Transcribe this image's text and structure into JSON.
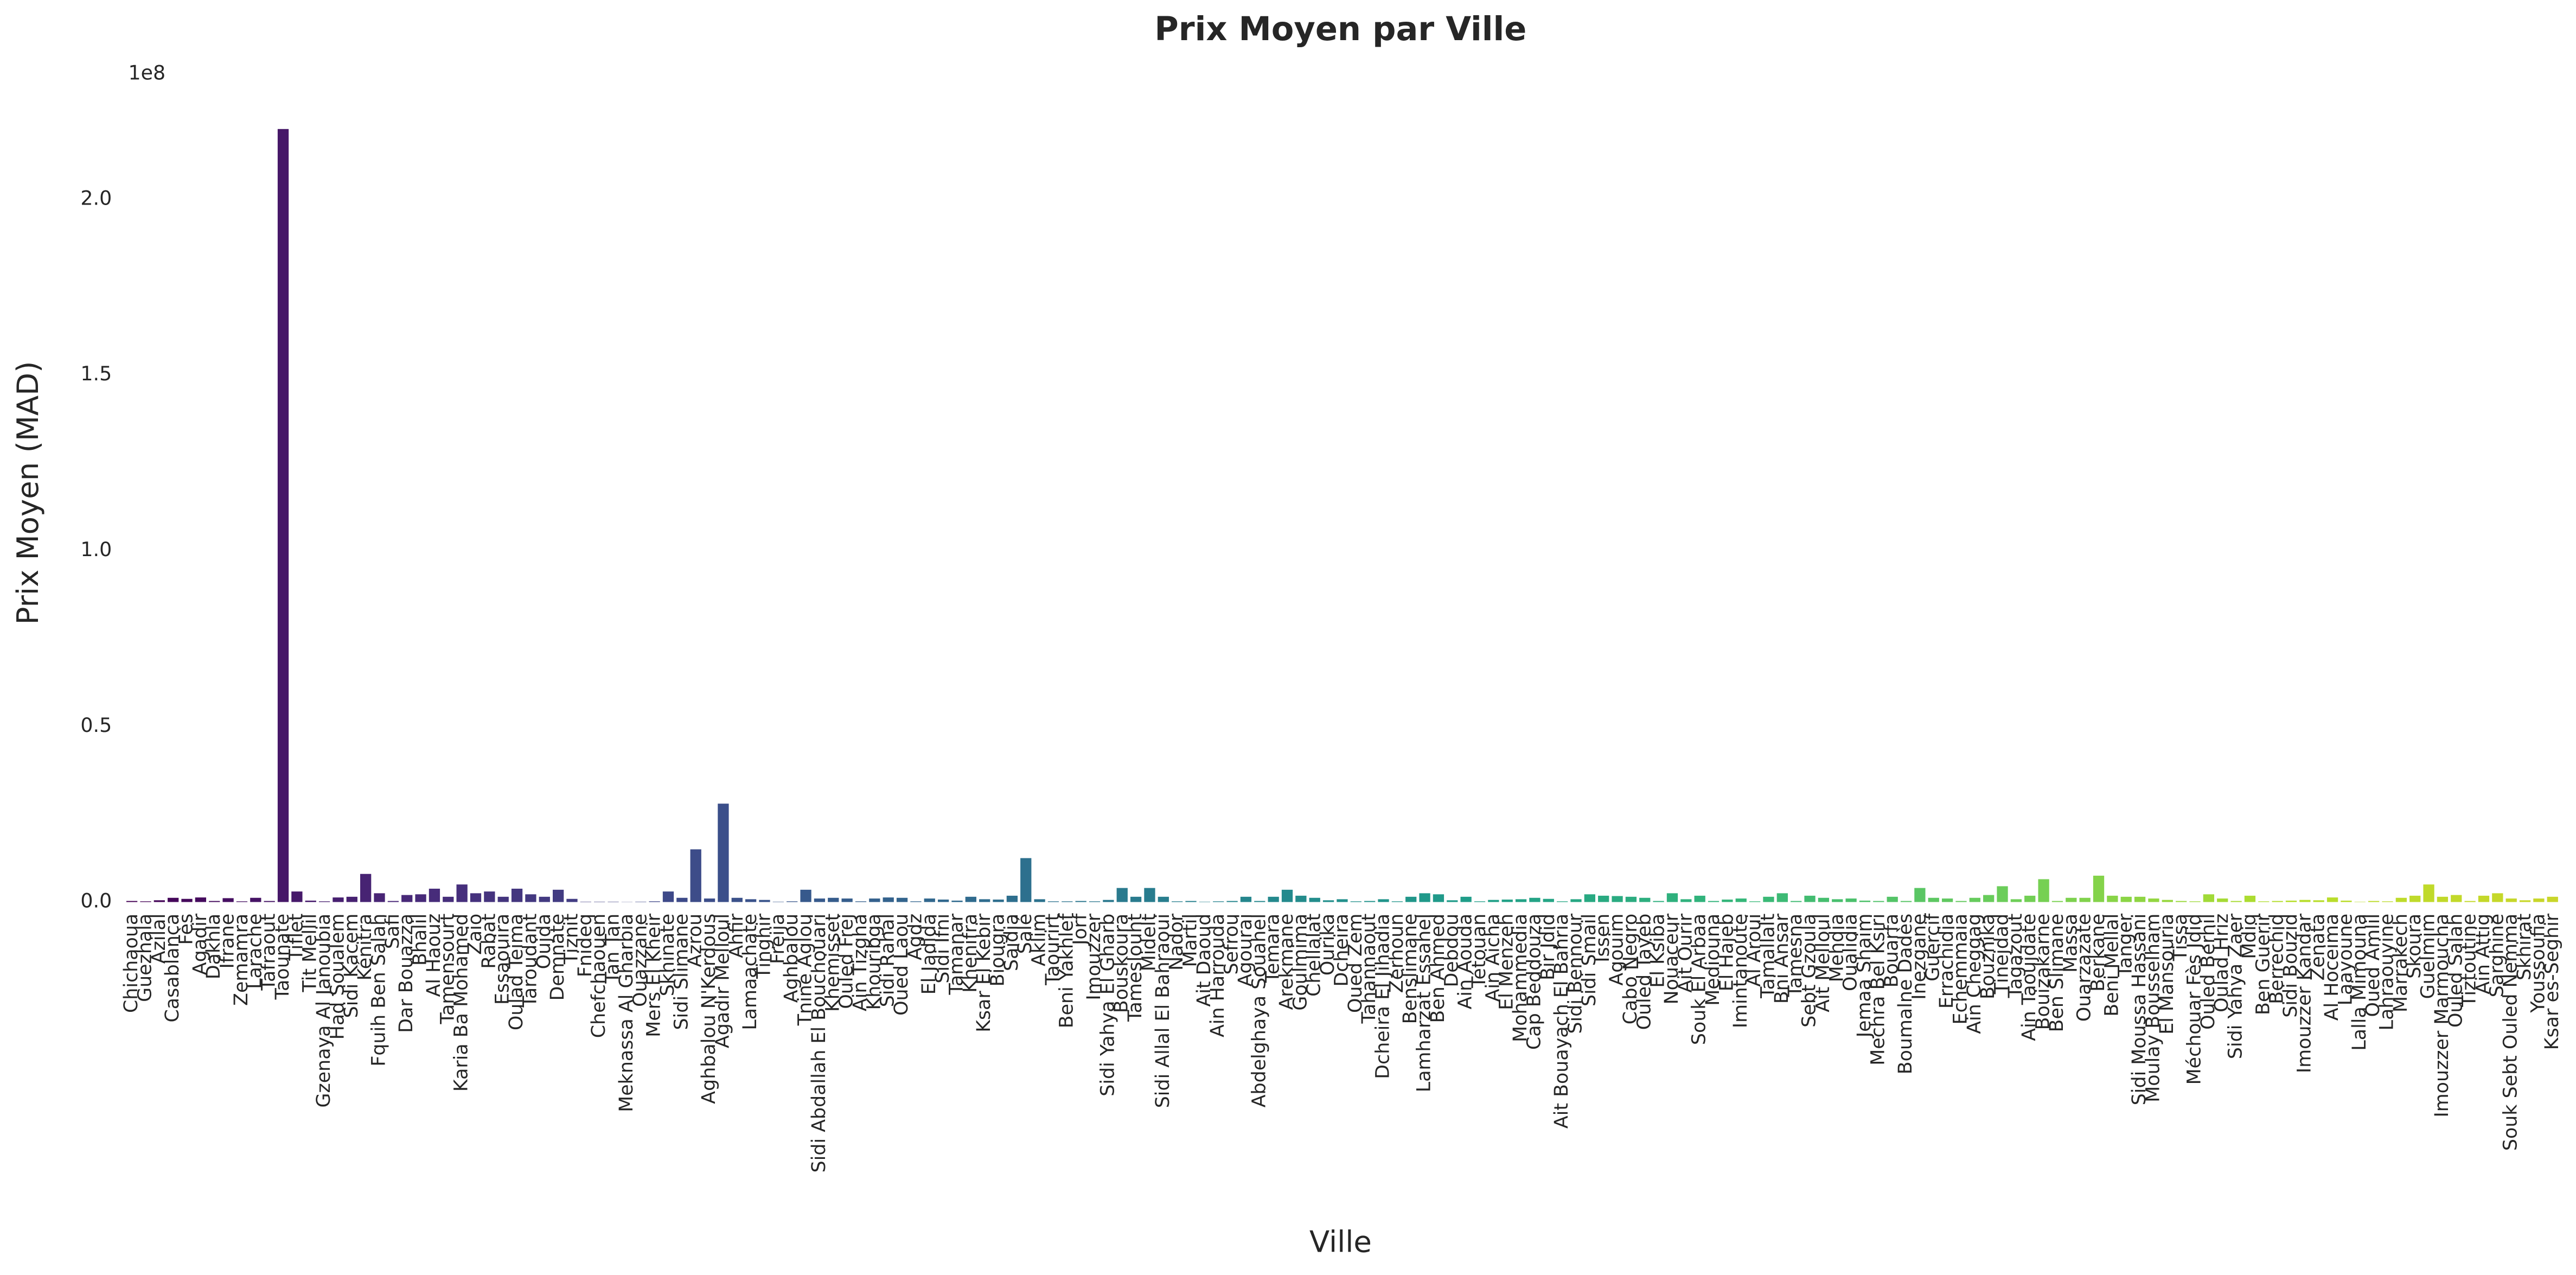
{
  "chart_data": {
    "type": "bar",
    "title": "Prix Moyen par Ville",
    "xlabel": "Ville",
    "ylabel": "Prix Moyen (MAD)",
    "offset_label": "1e8",
    "categories": [
      "Chichaoua",
      "Guezhala",
      "Azilal",
      "Casablanca",
      "Fès",
      "Agadir",
      "Dakhla",
      "Ifrane",
      "Zemamra",
      "Larache",
      "Tafraout",
      "Taounate",
      "Tiflet",
      "Tit Mellil",
      "Gzenaya Al Janoubia",
      "Had Soualem",
      "Sidi Kacem",
      "Kénitra",
      "Fquih Ben Salah",
      "Safi",
      "Dar Bouazza",
      "Bhalil",
      "Al Haouz",
      "Tamensourt",
      "Karia Ba Mohamed",
      "Zaio",
      "Rabat",
      "Essaouira",
      "Oulad Teima",
      "Taroudant",
      "Oujda",
      "Demnate",
      "Tiznit",
      "Fnideq",
      "Chefchaouen",
      "Tan Tan",
      "Meknassa Al Gharbia",
      "Ouazzane",
      "Mers El Kheir",
      "Skhinate",
      "Sidi Slimane",
      "Azrou",
      "Aghbalou N'Kerdous",
      "Agadir Melloul",
      "Ahfir",
      "Lamaachate",
      "Tinghir",
      "Freija",
      "Aghbalou",
      "Tnine Aglou",
      "Sidi Abdallah El Bouchouari",
      "Khemisset",
      "Ouled Frej",
      "Ain Tizgha",
      "Khouribga",
      "Sidi Rahal",
      "Oued Laou",
      "Agdz",
      "El Jadida",
      "Sidi Ifni",
      "Tamanar",
      "Khenifra",
      "Ksar El Kebir",
      "Biougra",
      "Saïdia",
      "Salé",
      "Aklim",
      "Taourirt",
      "Beni Yakhlef",
      "Jorf",
      "Imouzzer",
      "Sidi Yahya El Gharb",
      "Bouskoura",
      "Tameslouht",
      "Midelt",
      "Sidi Allal El Bahraoui",
      "Nador",
      "Martil",
      "Ait Daoud",
      "Ain Harrouda",
      "Sefrou",
      "Agourai",
      "Abdelghaya Souahel",
      "Temara",
      "Arekmane",
      "Goulmima",
      "Chellalat",
      "Ourika",
      "Dcheira",
      "Oued Zem",
      "Tahannaout",
      "Dcheira El Jihadia",
      "Zerhoun",
      "Benslimane",
      "Lamharzat Essahel",
      "Ben Ahmed",
      "Debdou",
      "Ain Aouda",
      "Tétouan",
      "Ain Aicha",
      "El Menzeh",
      "Mohammedia",
      "Cap Beddouza",
      "Bir Jdid",
      "Ait Bouayach El Bahria",
      "Sidi Bennour",
      "Sidi Smail",
      "Issen",
      "Agouim",
      "Cabo Negro",
      "Ouled Tayeb",
      "El Ksiba",
      "Nouaceur",
      "Ait Ourir",
      "Souk El Arbaa",
      "Mediouna",
      "El Hajeb",
      "Imintanoute",
      "Al Aroui",
      "Tamallalt",
      "Bni Ansar",
      "Tamesna",
      "Sebt Gzoula",
      "Ait Melloul",
      "Mehdia",
      "Oualidia",
      "Jemaa Shaim",
      "Mechra Bel Ksiri",
      "Bouarfa",
      "Boumalne Dadès",
      "Inezgane",
      "Guercif",
      "Errachidia",
      "Echemmaia",
      "Ain Cheggag",
      "Bouznika",
      "Tinejdad",
      "Tagazout",
      "Ain Taoujdate",
      "Bouizakarne",
      "Ben Slimane",
      "Massa",
      "Ouarzazate",
      "Berkane",
      "Beni Mellal",
      "Tanger",
      "Sidi Moussa Hassani",
      "Moulay Bousselham",
      "El Mansouria",
      "Tissa",
      "Méchouar Fès Jdid",
      "Ouled Berhil",
      "Oulad Hriz",
      "Sidi Yahya Zaer",
      "Mdiq",
      "Ben Guerir",
      "Berrechid",
      "Sidi Bouzid",
      "Imouzzer Kandar",
      "Zenata",
      "Al Hoceima",
      "Laayoune",
      "Lalla Mimouna",
      "Oued Amlil",
      "Lahraouyine",
      "Marrakech",
      "Skoura",
      "Guelmim",
      "Imouzzer Marmoucha",
      "Ouled Salah",
      "Tiztoutine",
      "Ain Attig",
      "Sarghine",
      "Souk Sebt Ouled Nemma",
      "Skhirat",
      "Youssoufia",
      "Ksar es-Seghir"
    ],
    "values": [
      300000,
      200000,
      500000,
      1200000,
      900000,
      1300000,
      300000,
      1100000,
      200000,
      1200000,
      300000,
      220000000,
      3000000,
      400000,
      200000,
      1300000,
      1500000,
      8000000,
      2500000,
      300000,
      2000000,
      2200000,
      3800000,
      1500000,
      5000000,
      2500000,
      3000000,
      1500000,
      3800000,
      2200000,
      1500000,
      3500000,
      900000,
      100000,
      100000,
      100000,
      50000,
      100000,
      200000,
      3000000,
      1200000,
      15000000,
      1000000,
      28000000,
      1200000,
      800000,
      600000,
      100000,
      200000,
      3500000,
      1000000,
      1200000,
      1000000,
      200000,
      1000000,
      1300000,
      1200000,
      200000,
      1000000,
      700000,
      400000,
      1500000,
      800000,
      700000,
      1800000,
      12500000,
      800000,
      200000,
      200000,
      300000,
      200000,
      600000,
      4000000,
      1500000,
      4000000,
      1500000,
      200000,
      300000,
      100000,
      200000,
      300000,
      1500000,
      300000,
      1500000,
      3500000,
      1800000,
      1200000,
      500000,
      800000,
      200000,
      300000,
      800000,
      200000,
      1500000,
      2500000,
      2200000,
      500000,
      1500000,
      200000,
      600000,
      700000,
      800000,
      1200000,
      900000,
      200000,
      800000,
      2200000,
      1800000,
      1700000,
      1500000,
      1200000,
      300000,
      2500000,
      800000,
      1800000,
      300000,
      700000,
      1000000,
      200000,
      1500000,
      2500000,
      300000,
      1800000,
      1200000,
      800000,
      1000000,
      400000,
      300000,
      1500000,
      300000,
      4000000,
      1200000,
      1000000,
      300000,
      1200000,
      2000000,
      4500000,
      800000,
      1800000,
      6500000,
      300000,
      1200000,
      1200000,
      7500000,
      1800000,
      1500000,
      1500000,
      1000000,
      600000,
      300000,
      200000,
      2200000,
      1000000,
      300000,
      1800000,
      200000,
      300000,
      400000,
      600000,
      500000,
      1300000,
      400000,
      100000,
      300000,
      200000,
      1200000,
      1800000,
      5000000,
      1500000,
      2000000,
      300000,
      1800000,
      2500000,
      1000000,
      500000,
      1000000,
      1500000
    ],
    "palette": [
      "#440154",
      "#482878",
      "#3e4989",
      "#31688e",
      "#26828e",
      "#1f9e89",
      "#35b779",
      "#6ece58",
      "#b5de2b",
      "#c9d62a"
    ],
    "ylim": [
      0,
      231000000
    ],
    "yticks": [
      {
        "value": 0,
        "label": "0.0"
      },
      {
        "value": 50000000,
        "label": "0.5"
      },
      {
        "value": 100000000,
        "label": "1.0"
      },
      {
        "value": 150000000,
        "label": "1.5"
      },
      {
        "value": 200000000,
        "label": "2.0"
      }
    ],
    "grid": false
  }
}
